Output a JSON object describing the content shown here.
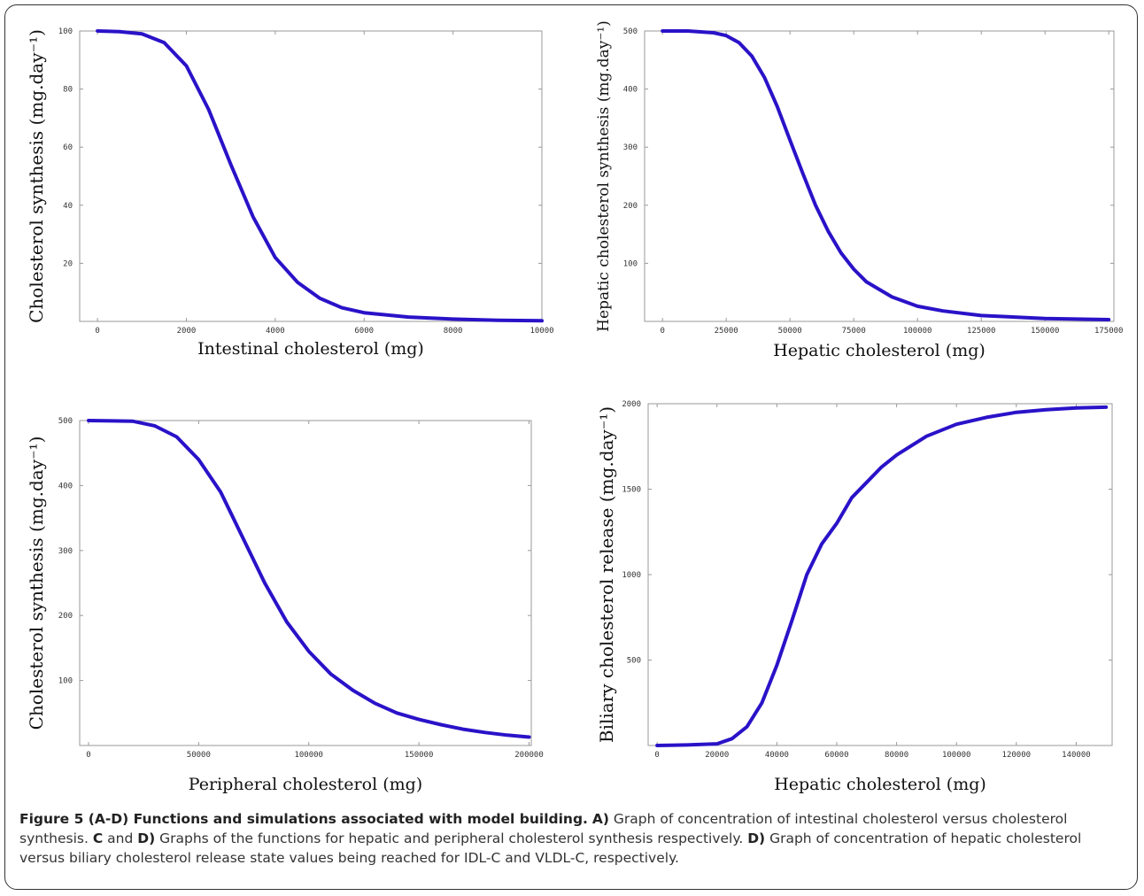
{
  "chart_data": [
    {
      "type": "line",
      "panel": "A",
      "xlabel": "Intestinal cholesterol (mg)",
      "ylabel": "Cholesterol synthesis (mg.day⁻¹)",
      "xlim": [
        -400,
        10000
      ],
      "ylim": [
        0,
        100
      ],
      "xticks": [
        "0",
        "2000",
        "4000",
        "6000",
        "8000",
        "10000"
      ],
      "xtick_values": [
        0,
        2000,
        4000,
        6000,
        8000,
        10000
      ],
      "yticks": [
        "20",
        "40",
        "60",
        "80",
        "100"
      ],
      "ytick_values": [
        20,
        40,
        60,
        80,
        100
      ],
      "series": [
        {
          "x": [
            0,
            500,
            1000,
            1500,
            2000,
            2500,
            3000,
            3500,
            4000,
            4500,
            5000,
            5500,
            6000,
            7000,
            8000,
            9000,
            10000
          ],
          "y": [
            100,
            99.8,
            99,
            96,
            88,
            73,
            54,
            36,
            22,
            13.5,
            8,
            4.7,
            3,
            1.5,
            0.8,
            0.4,
            0.2
          ]
        }
      ]
    },
    {
      "type": "line",
      "panel": "B",
      "xlabel": "Hepatic cholesterol (mg)",
      "ylabel": "Hepatic cholesterol synthesis (mg.day⁻¹)",
      "xlim": [
        -7000,
        177000
      ],
      "ylim": [
        0,
        500
      ],
      "xticks": [
        "0",
        "25000",
        "50000",
        "75000",
        "100000",
        "125000",
        "150000",
        "175000"
      ],
      "xtick_values": [
        0,
        25000,
        50000,
        75000,
        100000,
        125000,
        150000,
        175000
      ],
      "yticks": [
        "100",
        "200",
        "300",
        "400",
        "500"
      ],
      "ytick_values": [
        100,
        200,
        300,
        400,
        500
      ],
      "series": [
        {
          "x": [
            0,
            10000,
            20000,
            25000,
            30000,
            35000,
            40000,
            45000,
            50000,
            55000,
            60000,
            65000,
            70000,
            75000,
            80000,
            90000,
            100000,
            110000,
            125000,
            150000,
            175000
          ],
          "y": [
            500,
            500,
            497,
            492,
            480,
            457,
            420,
            370,
            312,
            255,
            200,
            155,
            118,
            90,
            68,
            42,
            26,
            18,
            10,
            5,
            3
          ]
        }
      ]
    },
    {
      "type": "line",
      "panel": "C",
      "xlabel": "Peripheral cholesterol (mg)",
      "ylabel": "Cholesterol synthesis (mg.day⁻¹)",
      "xlim": [
        -4000,
        201000
      ],
      "ylim": [
        0,
        500
      ],
      "xticks": [
        "0",
        "50000",
        "100000",
        "150000",
        "200000"
      ],
      "xtick_values": [
        0,
        50000,
        100000,
        150000,
        200000
      ],
      "yticks": [
        "100",
        "200",
        "300",
        "400",
        "500"
      ],
      "ytick_values": [
        100,
        200,
        300,
        400,
        500
      ],
      "series": [
        {
          "x": [
            0,
            20000,
            30000,
            40000,
            50000,
            60000,
            70000,
            80000,
            90000,
            100000,
            110000,
            120000,
            130000,
            140000,
            150000,
            160000,
            170000,
            180000,
            190000,
            200000
          ],
          "y": [
            500,
            499,
            492,
            475,
            440,
            390,
            320,
            250,
            190,
            145,
            110,
            85,
            65,
            50,
            40,
            32,
            25,
            20,
            16,
            13
          ]
        }
      ]
    },
    {
      "type": "line",
      "panel": "D",
      "xlabel": "Hepatic cholesterol (mg)",
      "ylabel": "Biliary cholesterol release (mg.day⁻¹)",
      "xlim": [
        -3000,
        152000
      ],
      "ylim": [
        0,
        2000
      ],
      "xticks": [
        "0",
        "20000",
        "40000",
        "60000",
        "80000",
        "100000",
        "120000",
        "140000"
      ],
      "xtick_values": [
        0,
        20000,
        40000,
        60000,
        80000,
        100000,
        120000,
        140000
      ],
      "yticks": [
        "500",
        "1000",
        "1500",
        "2000"
      ],
      "ytick_values": [
        500,
        1000,
        1500,
        2000
      ],
      "series": [
        {
          "x": [
            0,
            10000,
            20000,
            25000,
            30000,
            35000,
            40000,
            45000,
            50000,
            55000,
            60000,
            65000,
            70000,
            75000,
            80000,
            90000,
            100000,
            110000,
            120000,
            130000,
            140000,
            150000
          ],
          "y": [
            0,
            3,
            10,
            40,
            110,
            250,
            470,
            730,
            1000,
            1180,
            1300,
            1450,
            1540,
            1630,
            1700,
            1810,
            1880,
            1920,
            1950,
            1965,
            1975,
            1980
          ]
        }
      ]
    }
  ],
  "caption": {
    "p1": "Figure 5 (A-D) Functions and simulations associated with model building.",
    "p2": "A)",
    "p3": " Graph of concentration of intestinal cholesterol versus cholesterol synthesis. ",
    "p4": "C",
    "p5": " and ",
    "p6": "D)",
    "p7": " Graphs of the functions for hepatic and peripheral cholesterol synthesis respectively. ",
    "p8": "D)",
    "p9": " Graph of concentration of hepatic cholesterol versus biliary cholesterol release state values being reached for IDL-C and VLDL-C, respectively."
  },
  "colors": {
    "curve": "#2a12c8",
    "axis": "#9a9a9a"
  }
}
